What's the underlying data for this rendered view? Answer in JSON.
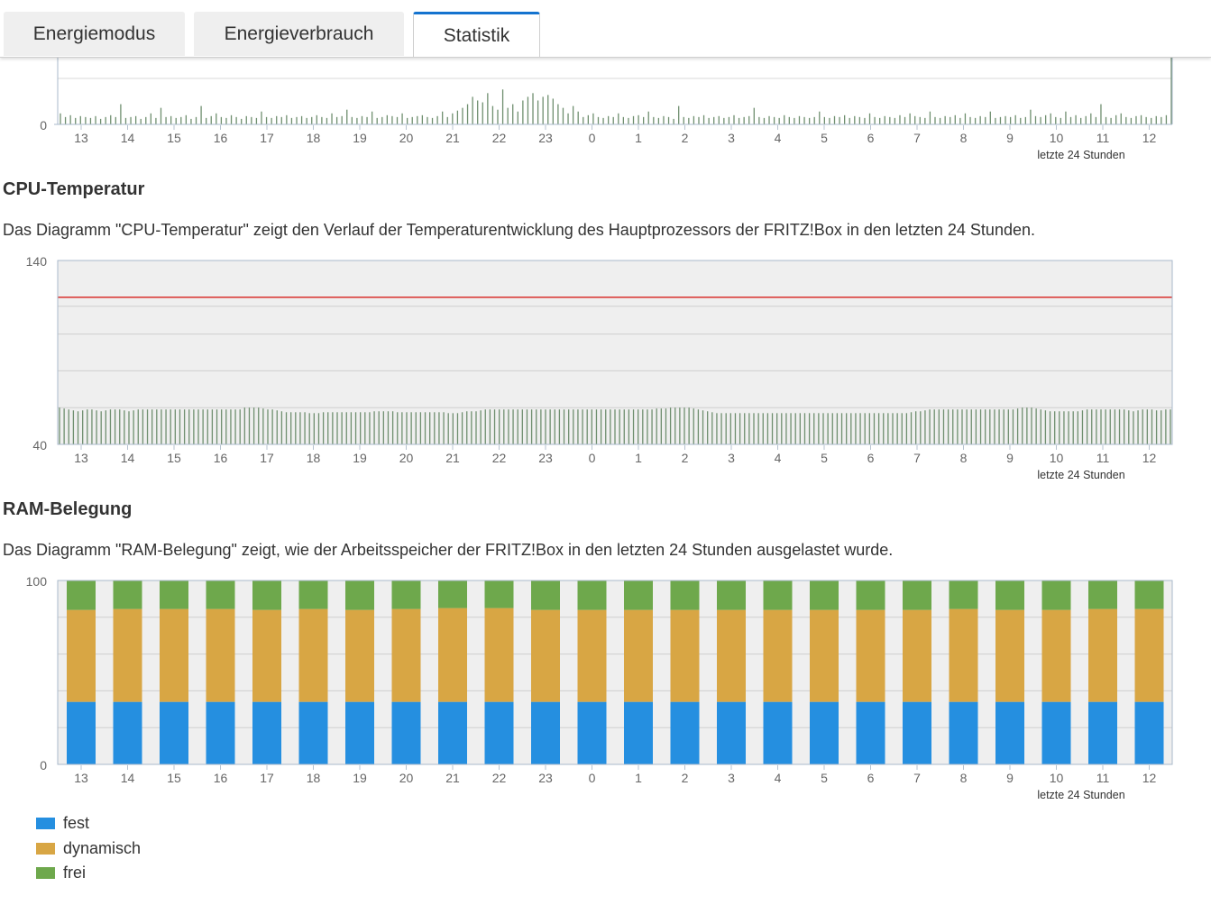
{
  "tabs": [
    {
      "label": "Energiemodus",
      "active": false
    },
    {
      "label": "Energieverbrauch",
      "active": false
    },
    {
      "label": "Statistik",
      "active": true
    }
  ],
  "hours": [
    "13",
    "14",
    "15",
    "16",
    "17",
    "18",
    "19",
    "20",
    "21",
    "22",
    "23",
    "0",
    "1",
    "2",
    "3",
    "4",
    "5",
    "6",
    "7",
    "8",
    "9",
    "10",
    "11",
    "12"
  ],
  "period_label": "letzte 24 Stunden",
  "cpu_temp": {
    "title": "CPU-Temperatur",
    "description": "Das Diagramm \"CPU-Temperatur\" zeigt den Verlauf der Temperaturentwicklung des Hauptprozessors der FRITZ!Box in den letzten 24 Stunden."
  },
  "ram": {
    "title": "RAM-Belegung",
    "description": "Das Diagramm \"RAM-Belegung\" zeigt, wie der Arbeitsspeicher der FRITZ!Box in den letzten 24 Stunden ausgelastet wurde."
  },
  "legend": [
    {
      "label": "fest",
      "color": "#258fe0"
    },
    {
      "label": "dynamisch",
      "color": "#d8a644"
    },
    {
      "label": "frei",
      "color": "#6ea84c"
    }
  ],
  "colors": {
    "bar_line": "#6f8f6f",
    "threshold": "#d9302c",
    "plot_bg": "#efefef",
    "axis": "#a9b9cb",
    "accent": "#1473cf"
  },
  "chart_data": [
    {
      "type": "bar",
      "ylim_min_label": "0",
      "ylim": [
        0,
        100
      ],
      "x_tick_labels": [
        "13",
        "14",
        "15",
        "16",
        "17",
        "18",
        "19",
        "20",
        "21",
        "22",
        "23",
        "0",
        "1",
        "2",
        "3",
        "4",
        "5",
        "6",
        "7",
        "8",
        "9",
        "10",
        "11",
        "12"
      ],
      "values": [
        12,
        8,
        10,
        7,
        9,
        8,
        7,
        9,
        6,
        8,
        10,
        8,
        22,
        7,
        8,
        9,
        6,
        8,
        12,
        7,
        18,
        8,
        9,
        7,
        8,
        10,
        6,
        8,
        20,
        7,
        9,
        12,
        8,
        7,
        10,
        8,
        6,
        9,
        8,
        7,
        14,
        8,
        7,
        9,
        8,
        10,
        7,
        8,
        9,
        7,
        8,
        10,
        8,
        7,
        12,
        8,
        9,
        16,
        8,
        7,
        9,
        8,
        14,
        7,
        8,
        10,
        9,
        8,
        12,
        7,
        8,
        9,
        10,
        8,
        7,
        9,
        14,
        8,
        12,
        15,
        18,
        22,
        30,
        26,
        24,
        34,
        20,
        16,
        38,
        18,
        22,
        14,
        26,
        30,
        34,
        26,
        30,
        32,
        28,
        22,
        18,
        12,
        20,
        14,
        8,
        10,
        12,
        8,
        7,
        9,
        8,
        12,
        8,
        7,
        9,
        10,
        8,
        14,
        8,
        7,
        9,
        8,
        6,
        20,
        8,
        7,
        9,
        8,
        10,
        7,
        8,
        9,
        7,
        8,
        10,
        7,
        8,
        9,
        18,
        8,
        7,
        9,
        8,
        7,
        10,
        8,
        7,
        9,
        8,
        7,
        8,
        14,
        8,
        7,
        9,
        8,
        10,
        7,
        9,
        8,
        7,
        12,
        8,
        7,
        9,
        8,
        7,
        10,
        8,
        12,
        9,
        8,
        7,
        14,
        8,
        7,
        9,
        8,
        10,
        7,
        12,
        8,
        7,
        9,
        8,
        14,
        7,
        8,
        9,
        8,
        10,
        7,
        8,
        16,
        9,
        8,
        10,
        12,
        8,
        7,
        14,
        8,
        10,
        7,
        9,
        12,
        8,
        22,
        8,
        7,
        10,
        12,
        8,
        7,
        9,
        10,
        8,
        7,
        9,
        8,
        10,
        100
      ]
    },
    {
      "type": "bar",
      "ylim": [
        40,
        140
      ],
      "threshold": 120,
      "x_tick_labels": [
        "13",
        "14",
        "15",
        "16",
        "17",
        "18",
        "19",
        "20",
        "21",
        "22",
        "23",
        "0",
        "1",
        "2",
        "3",
        "4",
        "5",
        "6",
        "7",
        "8",
        "9",
        "10",
        "11",
        "12"
      ],
      "values": [
        60,
        59.5,
        59,
        58.5,
        58,
        58.5,
        59,
        59,
        58.5,
        58,
        58.5,
        59,
        59,
        59,
        58.5,
        58,
        58.5,
        59,
        59,
        59,
        59,
        59,
        59,
        59,
        59,
        59,
        59,
        59,
        59,
        59,
        59,
        59,
        59,
        59,
        59,
        59,
        59,
        59,
        59,
        59,
        60,
        60,
        60,
        60,
        59.5,
        59,
        59,
        58.5,
        58,
        57.5,
        57.5,
        57.5,
        57.5,
        57.5,
        57,
        57,
        57,
        57.5,
        57.5,
        57.5,
        57.5,
        57.5,
        57.5,
        57.5,
        57.5,
        57.5,
        57.5,
        57.5,
        58,
        58,
        58,
        58,
        58,
        57.5,
        57.5,
        57.5,
        57.5,
        57.5,
        57.5,
        57.5,
        57.5,
        57.5,
        57.5,
        57.5,
        57,
        57,
        57,
        57.5,
        58,
        58,
        58,
        58.5,
        59,
        59,
        59,
        59,
        59,
        59,
        59,
        59,
        59,
        59,
        59,
        59,
        59,
        59,
        59,
        59,
        59,
        59,
        59,
        59,
        59,
        59,
        59,
        59,
        59,
        59,
        59,
        59,
        59,
        59,
        59,
        59,
        59,
        59,
        59,
        59,
        59,
        59.5,
        59.5,
        59.5,
        60,
        60,
        60,
        60,
        60,
        59.5,
        59,
        58.5,
        58,
        57.5,
        57,
        57,
        57,
        57,
        57,
        57,
        57,
        57,
        57,
        57,
        57,
        57,
        57,
        57,
        57,
        57,
        57,
        57,
        57,
        57,
        57,
        57,
        57,
        57,
        57,
        57,
        57,
        57,
        57,
        57,
        57,
        57,
        57,
        57,
        57,
        57,
        57,
        57,
        57,
        57,
        57,
        57,
        57.5,
        58,
        58,
        58.5,
        59,
        59,
        59,
        59,
        59,
        59,
        59,
        59,
        59,
        59,
        59,
        59,
        59,
        59,
        59,
        59,
        59,
        59,
        59,
        59.5,
        60,
        60,
        60,
        59.5,
        59,
        58.5,
        58,
        58,
        58,
        58,
        58,
        58,
        58,
        58.5,
        59,
        59,
        59,
        59,
        59,
        59,
        59,
        59,
        59,
        58.5,
        58,
        58.5,
        59,
        59,
        59,
        58.5,
        58.5,
        59,
        59
      ]
    },
    {
      "type": "stacked-bar",
      "ylim": [
        0,
        100
      ],
      "x_tick_labels": [
        "13",
        "14",
        "15",
        "16",
        "17",
        "18",
        "19",
        "20",
        "21",
        "22",
        "23",
        "0",
        "1",
        "2",
        "3",
        "4",
        "5",
        "6",
        "7",
        "8",
        "9",
        "10",
        "11",
        "12"
      ],
      "series": [
        {
          "name": "fest",
          "values": [
            34,
            34,
            34,
            34,
            34,
            34,
            34,
            34,
            34,
            34,
            34,
            34,
            34,
            34,
            34,
            34,
            34,
            34,
            34,
            34,
            34,
            34,
            34,
            34
          ]
        },
        {
          "name": "dynamisch",
          "values": [
            50,
            50.5,
            50.5,
            50.5,
            50,
            50.5,
            50,
            50.5,
            51,
            51,
            50,
            50,
            50,
            50,
            50,
            50,
            50,
            50,
            50,
            50.5,
            50,
            50,
            50.5,
            50.5
          ]
        },
        {
          "name": "frei",
          "values": [
            16,
            15.5,
            15.5,
            15.5,
            16,
            15.5,
            16,
            15.5,
            15,
            15,
            16,
            16,
            16,
            16,
            16,
            16,
            16,
            16,
            16,
            15.5,
            16,
            16,
            15.5,
            15.5
          ]
        }
      ]
    }
  ]
}
